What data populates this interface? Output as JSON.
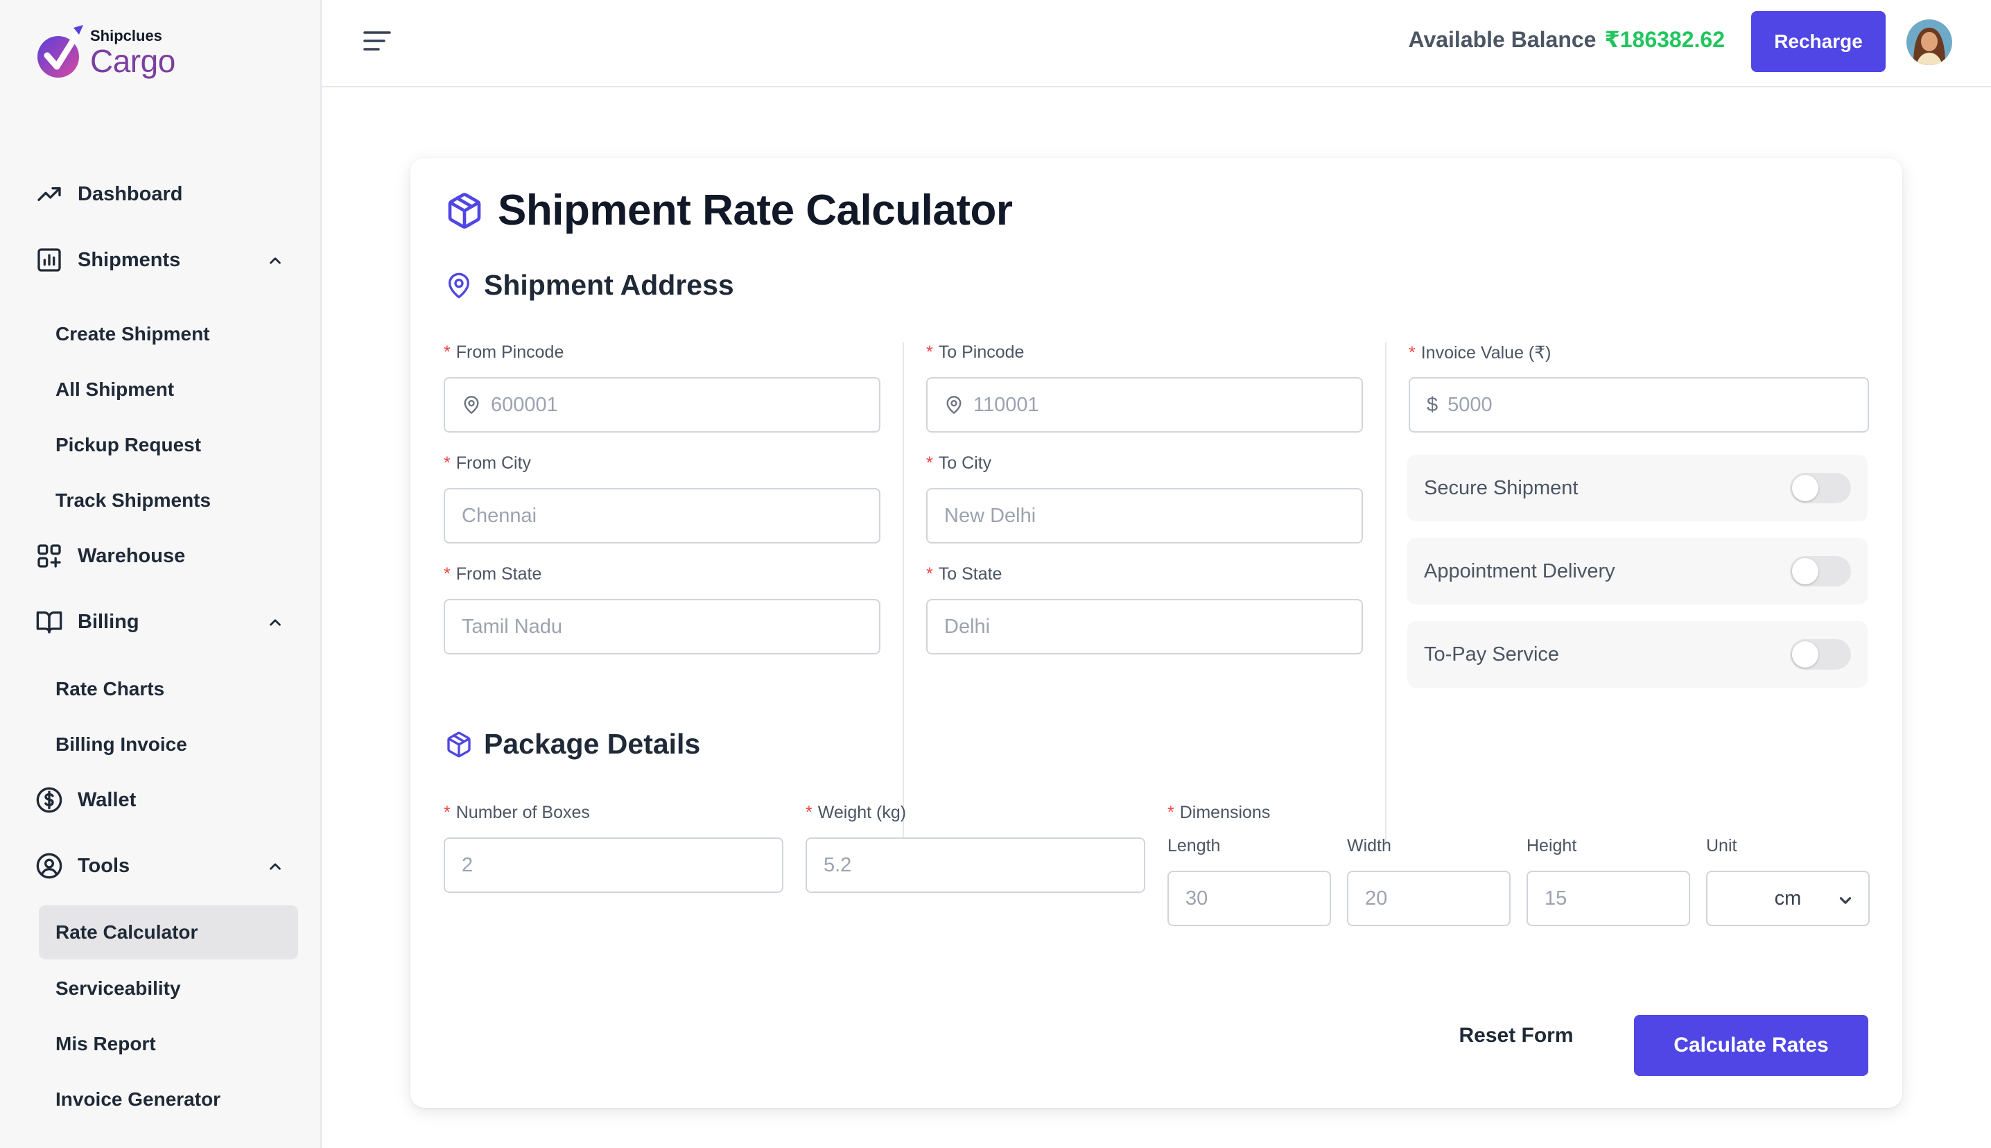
{
  "brand": {
    "small": "Shipclues",
    "big": "Cargo"
  },
  "sidebar": {
    "items": [
      {
        "label": "Dashboard",
        "icon": "trending-up-icon"
      },
      {
        "label": "Shipments",
        "icon": "bar-chart-icon",
        "expanded": true,
        "children": [
          "Create Shipment",
          "All Shipment",
          "Pickup Request",
          "Track Shipments"
        ]
      },
      {
        "label": "Warehouse",
        "icon": "grid-plus-icon"
      },
      {
        "label": "Billing",
        "icon": "book-open-icon",
        "expanded": true,
        "children": [
          "Rate Charts",
          "Billing Invoice"
        ]
      },
      {
        "label": "Wallet",
        "icon": "dollar-circle-icon"
      },
      {
        "label": "Tools",
        "icon": "user-circle-icon",
        "expanded": true,
        "children": [
          "Rate Calculator",
          "Serviceability",
          "Mis Report",
          "Invoice Generator"
        ]
      }
    ],
    "active": "Rate Calculator"
  },
  "header": {
    "balance_label": "Available Balance",
    "balance_amount": "₹186382.62",
    "recharge_label": "Recharge"
  },
  "page": {
    "title": "Shipment Rate Calculator",
    "address_section": "Shipment Address",
    "package_section": "Package Details"
  },
  "address": {
    "from_pincode": {
      "label": "From Pincode",
      "value": "600001"
    },
    "from_city": {
      "label": "From City",
      "value": "Chennai"
    },
    "from_state": {
      "label": "From State",
      "value": "Tamil Nadu"
    },
    "to_pincode": {
      "label": "To Pincode",
      "value": "110001"
    },
    "to_city": {
      "label": "To City",
      "value": "New Delhi"
    },
    "to_state": {
      "label": "To State",
      "value": "Delhi"
    },
    "invoice_value": {
      "label": "Invoice Value (₹)",
      "value": "5000",
      "prefix": "$"
    }
  },
  "options": [
    {
      "label": "Secure Shipment",
      "on": false
    },
    {
      "label": "Appointment Delivery",
      "on": false
    },
    {
      "label": "To-Pay Service",
      "on": false
    }
  ],
  "package": {
    "boxes": {
      "label": "Number of Boxes",
      "value": "2"
    },
    "weight": {
      "label": "Weight (kg)",
      "value": "5.2"
    },
    "dimensions": {
      "label": "Dimensions",
      "length": {
        "label": "Length",
        "value": "30"
      },
      "width": {
        "label": "Width",
        "value": "20"
      },
      "height": {
        "label": "Height",
        "value": "15"
      },
      "unit": {
        "label": "Unit",
        "value": "cm"
      }
    }
  },
  "actions": {
    "reset": "Reset Form",
    "calculate": "Calculate Rates"
  },
  "colors": {
    "accent": "#4f46e5",
    "balance": "#22c55e",
    "required": "#ef4444",
    "brand": "#7b3fa0"
  }
}
